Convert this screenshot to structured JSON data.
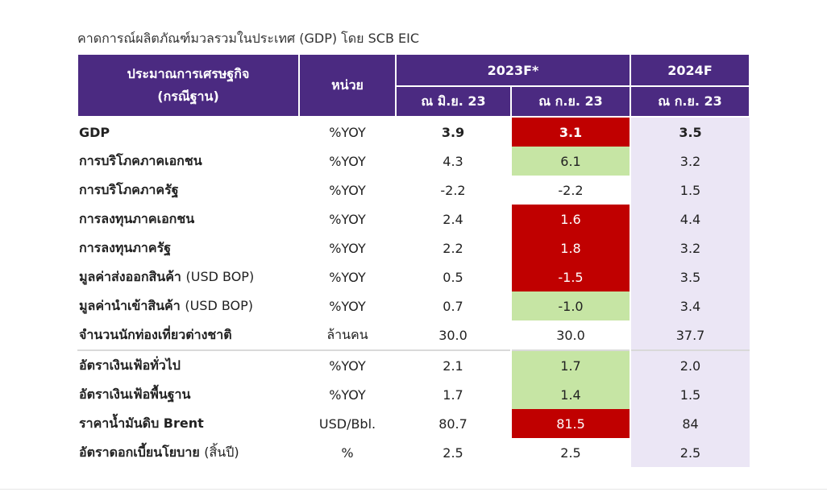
{
  "title": "คาดการณ์ผลิตภัณฑ์มวลรวมในประเทศ (GDP) โดย SCB EIC",
  "header": {
    "indicator_line1": "ประมาณการเศรษฐกิจ",
    "indicator_line2": "(กรณีฐาน)",
    "unit": "หน่วย",
    "year_2023": "2023F*",
    "year_2024": "2024F",
    "sub_jun23": "ณ มิ.ย. 23",
    "sub_sep23": "ณ ก.ย. 23",
    "sub_sep23_2024": "ณ ก.ย. 23"
  },
  "colors": {
    "header_bg": "#4b2a81",
    "downgrade": "#c00000",
    "upgrade": "#c6e5a4",
    "forecast_2024_bg": "#ebe6f5"
  },
  "rows": [
    {
      "name": "GDP",
      "note": "",
      "unit": "%YOY",
      "jun23": "3.9",
      "sep23": "3.1",
      "y2024": "3.5",
      "change": "down",
      "bold": true
    },
    {
      "name": "การบริโภคภาคเอกชน",
      "note": "",
      "unit": "%YOY",
      "jun23": "4.3",
      "sep23": "6.1",
      "y2024": "3.2",
      "change": "up"
    },
    {
      "name": "การบริโภคภาครัฐ",
      "note": "",
      "unit": "%YOY",
      "jun23": "-2.2",
      "sep23": "-2.2",
      "y2024": "1.5",
      "change": "none"
    },
    {
      "name": "การลงทุนภาคเอกชน",
      "note": "",
      "unit": "%YOY",
      "jun23": "2.4",
      "sep23": "1.6",
      "y2024": "4.4",
      "change": "down"
    },
    {
      "name": "การลงทุนภาครัฐ",
      "note": "",
      "unit": "%YOY",
      "jun23": "2.2",
      "sep23": "1.8",
      "y2024": "3.2",
      "change": "down"
    },
    {
      "name": "มูลค่าส่งออกสินค้า",
      "note": "(USD BOP)",
      "unit": "%YOY",
      "jun23": "0.5",
      "sep23": "-1.5",
      "y2024": "3.5",
      "change": "down"
    },
    {
      "name": "มูลค่านำเข้าสินค้า",
      "note": " (USD BOP)",
      "unit": "%YOY",
      "jun23": "0.7",
      "sep23": "-1.0",
      "y2024": "3.4",
      "change": "up"
    },
    {
      "name": "จำนวนนักท่องเที่ยวต่างชาติ",
      "note": "",
      "unit": "ล้านคน",
      "jun23": "30.0",
      "sep23": "30.0",
      "y2024": "37.7",
      "change": "none"
    },
    {
      "name": "อัตราเงินเฟ้อทั่วไป",
      "note": "",
      "unit": "%YOY",
      "jun23": "2.1",
      "sep23": "1.7",
      "y2024": "2.0",
      "change": "up",
      "group_start": true
    },
    {
      "name": "อัตราเงินเฟ้อพื้นฐาน",
      "note": "",
      "unit": "%YOY",
      "jun23": "1.7",
      "sep23": "1.4",
      "y2024": "1.5",
      "change": "up"
    },
    {
      "name": "ราคาน้ำมันดิบ Brent",
      "note": "",
      "unit": "USD/Bbl.",
      "jun23": "80.7",
      "sep23": "81.5",
      "y2024": "84",
      "change": "down"
    },
    {
      "name": "อัตราดอกเบี้ยนโยบาย",
      "note": "(สิ้นปี)",
      "unit": "%",
      "jun23": "2.5",
      "sep23": "2.5",
      "y2024": "2.5",
      "change": "none"
    }
  ]
}
